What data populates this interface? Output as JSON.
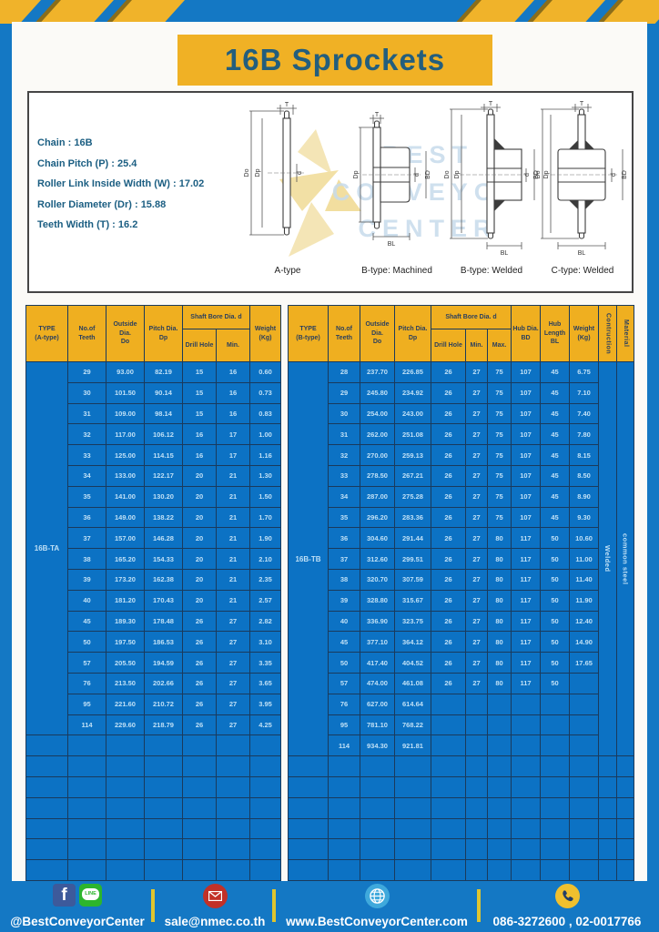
{
  "title": "16B Sprockets",
  "colors": {
    "frame_blue": "#1478C4",
    "table_cell_blue": "#0C72C4",
    "grid_navy": "#1A3A5C",
    "accent_yellow": "#F0B125",
    "header_yellow": "#EFAF20",
    "title_teal": "#235E7D",
    "cell_text": "#BFE0F6"
  },
  "specs": {
    "lines": [
      "Chain  :  16B",
      "Chain Pitch (P)  :  25.4",
      "Roller Link Inside Width (W)  :  17.02",
      "Roller Diameter (Dr)  : 15.88",
      "Teeth Width (T)  :  16.2"
    ]
  },
  "watermark": {
    "lines": [
      "BEST",
      "CONVEYOR",
      "CENTER"
    ]
  },
  "diagram": {
    "labels": [
      "A-type",
      "B-type: Machined",
      "B-type: Welded",
      "C-type: Welded"
    ],
    "dims": {
      "t": "T",
      "outside": "Do",
      "pitch": "Dp",
      "bore": "d",
      "hub_dia": "BD",
      "hub_len": "BL"
    }
  },
  "tables": {
    "left": {
      "type_label": "16B-TA",
      "header": {
        "type": [
          "TYPE",
          "(A-type)"
        ],
        "teeth": [
          "No.of",
          "Teeth"
        ],
        "outside": [
          "Outside",
          "Dia.",
          "Do"
        ],
        "pitch": [
          "Pitch Dia.",
          "Dp"
        ],
        "bore_group": "Shaft Bore Dia. d",
        "drill": "Drill Hole",
        "min": "Min.",
        "weight": [
          "Weight",
          "(Kg)"
        ]
      },
      "rows": [
        [
          "29",
          "93.00",
          "82.19",
          "15",
          "16",
          "0.60"
        ],
        [
          "30",
          "101.50",
          "90.14",
          "15",
          "16",
          "0.73"
        ],
        [
          "31",
          "109.00",
          "98.14",
          "15",
          "16",
          "0.83"
        ],
        [
          "32",
          "117.00",
          "106.12",
          "16",
          "17",
          "1.00"
        ],
        [
          "33",
          "125.00",
          "114.15",
          "16",
          "17",
          "1.16"
        ],
        [
          "34",
          "133.00",
          "122.17",
          "20",
          "21",
          "1.30"
        ],
        [
          "35",
          "141.00",
          "130.20",
          "20",
          "21",
          "1.50"
        ],
        [
          "36",
          "149.00",
          "138.22",
          "20",
          "21",
          "1.70"
        ],
        [
          "37",
          "157.00",
          "146.28",
          "20",
          "21",
          "1.90"
        ],
        [
          "38",
          "165.20",
          "154.33",
          "20",
          "21",
          "2.10"
        ],
        [
          "39",
          "173.20",
          "162.38",
          "20",
          "21",
          "2.35"
        ],
        [
          "40",
          "181.20",
          "170.43",
          "20",
          "21",
          "2.57"
        ],
        [
          "45",
          "189.30",
          "178.48",
          "26",
          "27",
          "2.82"
        ],
        [
          "50",
          "197.50",
          "186.53",
          "26",
          "27",
          "3.10"
        ],
        [
          "57",
          "205.50",
          "194.59",
          "26",
          "27",
          "3.35"
        ],
        [
          "76",
          "213.50",
          "202.66",
          "26",
          "27",
          "3.65"
        ],
        [
          "95",
          "221.60",
          "210.72",
          "26",
          "27",
          "3.95"
        ],
        [
          "114",
          "229.60",
          "218.79",
          "26",
          "27",
          "4.25"
        ]
      ],
      "empty_rows": 7
    },
    "right": {
      "type_label": "16B-TB",
      "construction_value": "Welded",
      "material_value": "common steel",
      "header": {
        "type": [
          "TYPE",
          "(B-type)"
        ],
        "teeth": [
          "No.of",
          "Teeth"
        ],
        "outside": [
          "Outside",
          "Dia.",
          "Do"
        ],
        "pitch": [
          "Pitch Dia.",
          "Dp"
        ],
        "bore_group": "Shaft Bore Dia. d",
        "drill": "Drill Hole",
        "min": "Min.",
        "max": "Max.",
        "hub_dia": [
          "Hub Dia.",
          "BD"
        ],
        "hub_len": [
          "Hub",
          "Length",
          "BL"
        ],
        "weight": [
          "Weight",
          "(Kg)"
        ],
        "construction": "Contruction",
        "material": "Material"
      },
      "rows": [
        [
          "28",
          "237.70",
          "226.85",
          "26",
          "27",
          "75",
          "107",
          "45",
          "6.75"
        ],
        [
          "29",
          "245.80",
          "234.92",
          "26",
          "27",
          "75",
          "107",
          "45",
          "7.10"
        ],
        [
          "30",
          "254.00",
          "243.00",
          "26",
          "27",
          "75",
          "107",
          "45",
          "7.40"
        ],
        [
          "31",
          "262.00",
          "251.08",
          "26",
          "27",
          "75",
          "107",
          "45",
          "7.80"
        ],
        [
          "32",
          "270.00",
          "259.13",
          "26",
          "27",
          "75",
          "107",
          "45",
          "8.15"
        ],
        [
          "33",
          "278.50",
          "267.21",
          "26",
          "27",
          "75",
          "107",
          "45",
          "8.50"
        ],
        [
          "34",
          "287.00",
          "275.28",
          "26",
          "27",
          "75",
          "107",
          "45",
          "8.90"
        ],
        [
          "35",
          "296.20",
          "283.36",
          "26",
          "27",
          "75",
          "107",
          "45",
          "9.30"
        ],
        [
          "36",
          "304.60",
          "291.44",
          "26",
          "27",
          "80",
          "117",
          "50",
          "10.60"
        ],
        [
          "37",
          "312.60",
          "299.51",
          "26",
          "27",
          "80",
          "117",
          "50",
          "11.00"
        ],
        [
          "38",
          "320.70",
          "307.59",
          "26",
          "27",
          "80",
          "117",
          "50",
          "11.40"
        ],
        [
          "39",
          "328.80",
          "315.67",
          "26",
          "27",
          "80",
          "117",
          "50",
          "11.90"
        ],
        [
          "40",
          "336.90",
          "323.75",
          "26",
          "27",
          "80",
          "117",
          "50",
          "12.40"
        ],
        [
          "45",
          "377.10",
          "364.12",
          "26",
          "27",
          "80",
          "117",
          "50",
          "14.90"
        ],
        [
          "50",
          "417.40",
          "404.52",
          "26",
          "27",
          "80",
          "117",
          "50",
          "17.65"
        ],
        [
          "57",
          "474.00",
          "461.08",
          "26",
          "27",
          "80",
          "117",
          "50",
          ""
        ],
        [
          "76",
          "627.00",
          "614.64",
          "",
          "",
          "",
          "",
          "",
          ""
        ],
        [
          "95",
          "781.10",
          "768.22",
          "",
          "",
          "",
          "",
          "",
          ""
        ],
        [
          "114",
          "934.30",
          "921.81",
          "",
          "",
          "",
          "",
          "",
          ""
        ]
      ],
      "empty_rows": 6
    }
  },
  "footer": {
    "social_handle": "@BestConveyorCenter",
    "line_label": "LINE",
    "fb_label": "f",
    "email": "sale@nmec.co.th",
    "website": "www.BestConveyorCenter.com",
    "phones": "086-3272600 , 02-0017766"
  }
}
